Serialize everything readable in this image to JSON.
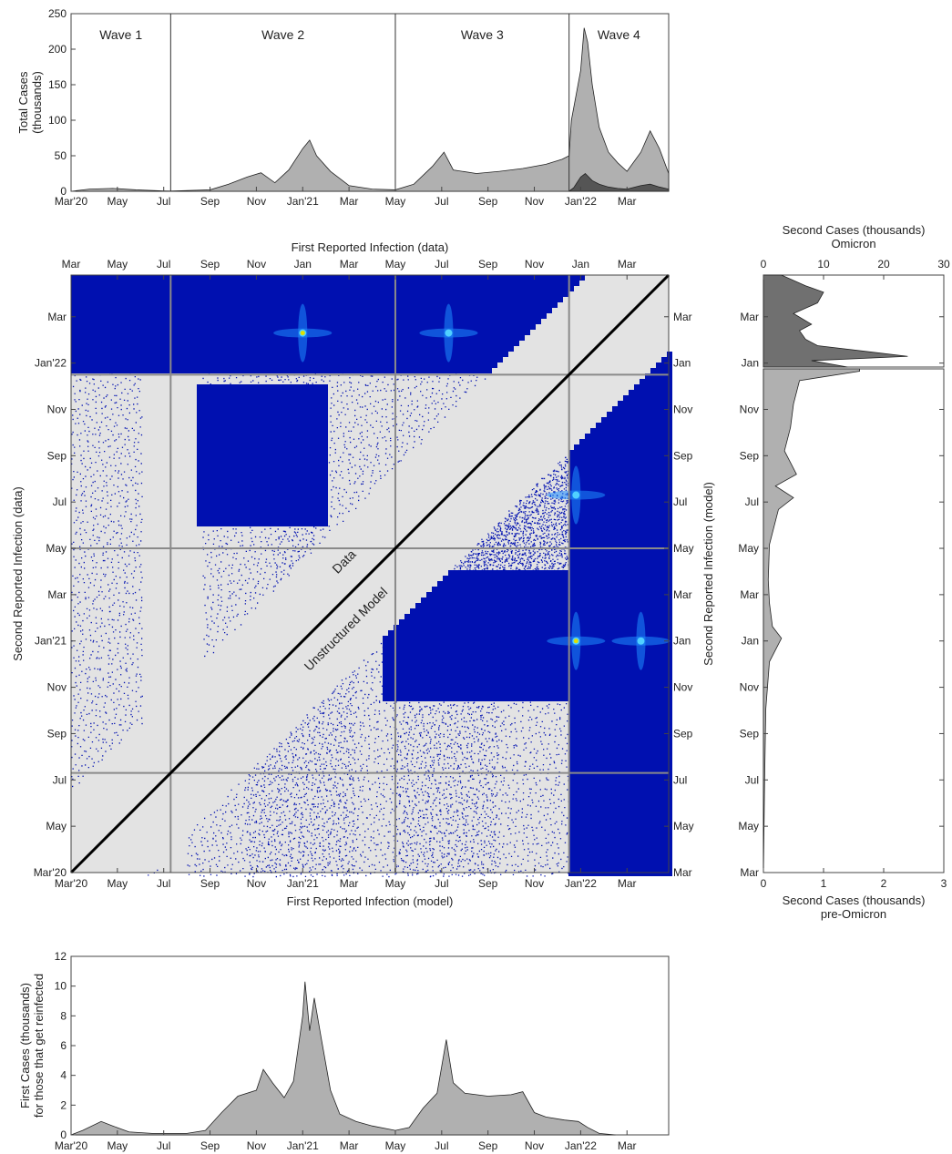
{
  "chart_data": [
    {
      "id": "top",
      "type": "area",
      "ylabel_lines": [
        "Total Cases",
        "(thousands)"
      ],
      "ylim": [
        0,
        250
      ],
      "yticks": [
        0,
        50,
        100,
        150,
        200,
        250
      ],
      "xticks": [
        "Mar'20",
        "May",
        "Jul",
        "Sep",
        "Nov",
        "Jan'21",
        "Mar",
        "May",
        "Jul",
        "Sep",
        "Nov",
        "Jan'22",
        "Mar"
      ],
      "waves": [
        {
          "label": "Wave 1",
          "start_month": 0,
          "end_month": 4.3
        },
        {
          "label": "Wave 2",
          "start_month": 4.3,
          "end_month": 14.0
        },
        {
          "label": "Wave 3",
          "start_month": 14.0,
          "end_month": 21.5
        },
        {
          "label": "Wave 4",
          "start_month": 21.5,
          "end_month": 25.8
        }
      ],
      "series": [
        {
          "name": "Total",
          "color": "#b0b0b0",
          "points": [
            [
              0,
              0
            ],
            [
              0.8,
              3
            ],
            [
              1.8,
              4
            ],
            [
              2.8,
              2
            ],
            [
              4.0,
              0.5
            ],
            [
              4.3,
              0.3
            ],
            [
              6.0,
              2
            ],
            [
              6.8,
              10
            ],
            [
              7.6,
              20
            ],
            [
              8.2,
              26
            ],
            [
              8.8,
              12
            ],
            [
              9.4,
              30
            ],
            [
              10.0,
              60
            ],
            [
              10.3,
              72
            ],
            [
              10.6,
              50
            ],
            [
              11.2,
              28
            ],
            [
              12.0,
              8
            ],
            [
              13.0,
              3
            ],
            [
              14.0,
              2
            ],
            [
              14.8,
              10
            ],
            [
              15.6,
              35
            ],
            [
              16.1,
              55
            ],
            [
              16.5,
              30
            ],
            [
              17.5,
              25
            ],
            [
              18.5,
              28
            ],
            [
              19.5,
              32
            ],
            [
              20.5,
              38
            ],
            [
              21.2,
              45
            ],
            [
              21.5,
              50
            ],
            [
              21.6,
              100
            ],
            [
              22.0,
              170
            ],
            [
              22.15,
              230
            ],
            [
              22.3,
              210
            ],
            [
              22.5,
              150
            ],
            [
              22.8,
              90
            ],
            [
              23.2,
              55
            ],
            [
              23.6,
              40
            ],
            [
              24.0,
              28
            ],
            [
              24.6,
              55
            ],
            [
              25.0,
              85
            ],
            [
              25.4,
              60
            ],
            [
              25.8,
              25
            ]
          ]
        },
        {
          "name": "Omicron",
          "color": "#555555",
          "points": [
            [
              21.5,
              0
            ],
            [
              21.7,
              5
            ],
            [
              22.0,
              20
            ],
            [
              22.2,
              25
            ],
            [
              22.5,
              15
            ],
            [
              22.8,
              10
            ],
            [
              23.2,
              6
            ],
            [
              23.6,
              4
            ],
            [
              24.0,
              3
            ],
            [
              24.6,
              8
            ],
            [
              25.0,
              10
            ],
            [
              25.4,
              6
            ],
            [
              25.8,
              3
            ]
          ]
        }
      ]
    },
    {
      "id": "heatmap",
      "type": "heatmap",
      "xlabel_top": "First Reported Infection (data)",
      "xlabel_bottom": "First Reported Infection (model)",
      "ylabel_left": "Second Reported Infection (data)",
      "ylabel_right": "Second Reported Infection (model)",
      "xticks_top": [
        "Mar",
        "May",
        "Jul",
        "Sep",
        "Nov",
        "Jan",
        "Mar",
        "May",
        "Jul",
        "Sep",
        "Nov",
        "Jan",
        "Mar"
      ],
      "xticks_bottom": [
        "Mar'20",
        "May",
        "Jul",
        "Sep",
        "Nov",
        "Jan'21",
        "Mar",
        "May",
        "Jul",
        "Sep",
        "Nov",
        "Jan'22",
        "Mar"
      ],
      "yticks_left": [
        "Mar'20",
        "May",
        "Jul",
        "Sep",
        "Nov",
        "Jan'21",
        "Mar",
        "May",
        "Jul",
        "Sep",
        "Nov",
        "Jan'22",
        "Mar"
      ],
      "yticks_right": [
        "Mar",
        "May",
        "Jul",
        "Sep",
        "Nov",
        "Jan",
        "Mar",
        "May",
        "Jul",
        "Sep",
        "Nov",
        "Jan",
        "Mar"
      ],
      "annotations": [
        "Data",
        "Unstructured Model"
      ],
      "wave_lines_month": [
        4.3,
        14.0,
        21.5
      ],
      "colors": {
        "background": "#e3e3e3",
        "dense": "#0010b0",
        "hot": "#1e8cff",
        "peak": "#e0e000"
      }
    },
    {
      "id": "right",
      "type": "area",
      "xlabel_top_lines": [
        "Second Cases (thousands)",
        "Omicron"
      ],
      "xlabel_bottom_lines": [
        "Second Cases (thousands)",
        "pre-Omicron"
      ],
      "ylabel": "Second Reported Infection (model)",
      "xticks_top": [
        "0",
        "10",
        "20",
        "30"
      ],
      "xticks_bottom": [
        "0",
        "1",
        "2",
        "3"
      ],
      "yticks": [
        "Mar",
        "May",
        "Jul",
        "Sep",
        "Nov",
        "Jan",
        "Mar",
        "May",
        "Jul",
        "Sep",
        "Nov",
        "Jan",
        "Mar"
      ],
      "series": [
        {
          "name": "Omicron",
          "color": "#707070",
          "xlim": [
            0,
            30
          ],
          "points": [
            [
              21.5,
              14
            ],
            [
              21.8,
              8
            ],
            [
              22.0,
              24
            ],
            [
              22.2,
              18
            ],
            [
              22.5,
              9
            ],
            [
              22.8,
              7
            ],
            [
              23.2,
              6
            ],
            [
              23.5,
              8
            ],
            [
              24.0,
              5
            ],
            [
              24.5,
              9
            ],
            [
              25.0,
              10
            ],
            [
              25.3,
              7
            ],
            [
              25.8,
              3
            ]
          ]
        },
        {
          "name": "pre-Omicron",
          "color": "#b0b0b0",
          "xlim": [
            0,
            3
          ],
          "points": [
            [
              0,
              0
            ],
            [
              4,
              0.02
            ],
            [
              7,
              0.04
            ],
            [
              9,
              0.1
            ],
            [
              10,
              0.3
            ],
            [
              10.5,
              0.15
            ],
            [
              11.5,
              0.1
            ],
            [
              12.5,
              0.08
            ],
            [
              14,
              0.1
            ],
            [
              15,
              0.2
            ],
            [
              15.5,
              0.25
            ],
            [
              16,
              0.5
            ],
            [
              16.5,
              0.2
            ],
            [
              17,
              0.55
            ],
            [
              18,
              0.35
            ],
            [
              19,
              0.45
            ],
            [
              20,
              0.5
            ],
            [
              21,
              0.6
            ],
            [
              21.4,
              1.6
            ],
            [
              21.5,
              1.6
            ]
          ]
        }
      ]
    },
    {
      "id": "bottom",
      "type": "area",
      "ylabel_lines": [
        "First Cases (thousands)",
        "for those that get reinfected"
      ],
      "ylim": [
        0,
        12
      ],
      "yticks": [
        0,
        2,
        4,
        6,
        8,
        10,
        12
      ],
      "xticks": [
        "Mar'20",
        "May",
        "Jul",
        "Sep",
        "Nov",
        "Jan'21",
        "Mar",
        "May",
        "Jul",
        "Sep",
        "Nov",
        "Jan'22",
        "Mar"
      ],
      "series": [
        {
          "name": "First Cases",
          "color": "#b0b0b0",
          "points": [
            [
              0,
              0
            ],
            [
              0.5,
              0.3
            ],
            [
              1.3,
              0.9
            ],
            [
              1.8,
              0.6
            ],
            [
              2.5,
              0.2
            ],
            [
              3.5,
              0.1
            ],
            [
              5.0,
              0.1
            ],
            [
              5.8,
              0.3
            ],
            [
              6.5,
              1.5
            ],
            [
              7.2,
              2.6
            ],
            [
              8.0,
              3.0
            ],
            [
              8.3,
              4.4
            ],
            [
              8.7,
              3.5
            ],
            [
              9.2,
              2.5
            ],
            [
              9.6,
              3.6
            ],
            [
              10.0,
              8.0
            ],
            [
              10.1,
              10.3
            ],
            [
              10.3,
              7.0
            ],
            [
              10.5,
              9.2
            ],
            [
              10.8,
              6.5
            ],
            [
              11.2,
              3.0
            ],
            [
              11.6,
              1.4
            ],
            [
              12.3,
              0.9
            ],
            [
              13.0,
              0.6
            ],
            [
              14.0,
              0.3
            ],
            [
              14.6,
              0.5
            ],
            [
              15.2,
              1.8
            ],
            [
              15.8,
              2.8
            ],
            [
              16.2,
              6.4
            ],
            [
              16.5,
              3.5
            ],
            [
              17.0,
              2.8
            ],
            [
              18.0,
              2.6
            ],
            [
              19.0,
              2.7
            ],
            [
              19.5,
              2.9
            ],
            [
              20.0,
              1.5
            ],
            [
              20.5,
              1.2
            ],
            [
              21.3,
              1.0
            ],
            [
              21.9,
              0.9
            ],
            [
              22.3,
              0.5
            ],
            [
              22.8,
              0.1
            ],
            [
              23.5,
              0
            ]
          ]
        }
      ]
    }
  ]
}
